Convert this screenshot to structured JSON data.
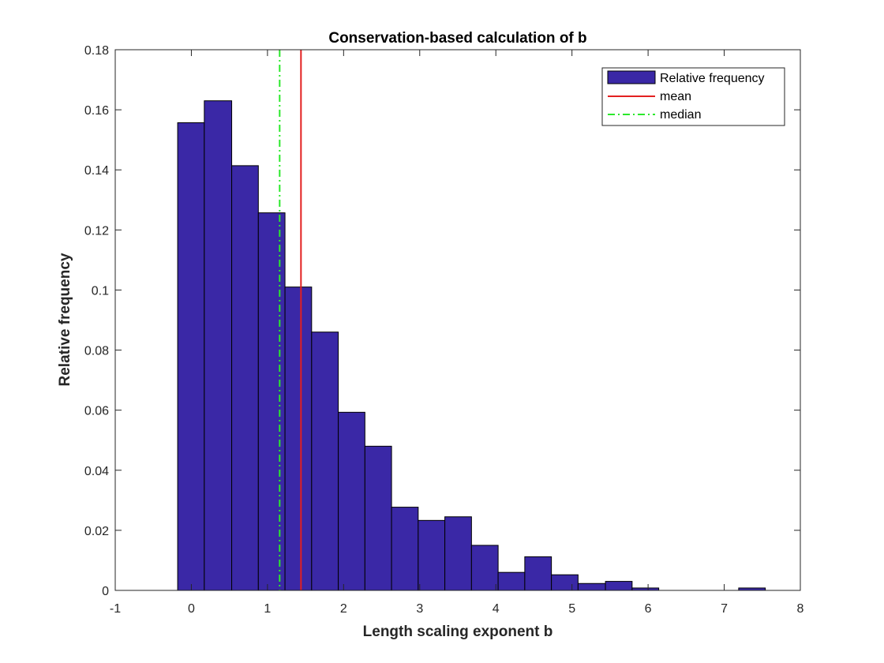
{
  "chart_data": {
    "type": "bar",
    "title": "Conservation-based calculation of b",
    "xlabel": "Length scaling exponent b",
    "ylabel": "Relative frequency",
    "xlim": [
      -1,
      8
    ],
    "ylim": [
      0,
      0.18
    ],
    "xticks": [
      -1,
      0,
      1,
      2,
      3,
      4,
      5,
      6,
      7,
      8
    ],
    "yticks": [
      0,
      0.02,
      0.04,
      0.06,
      0.08,
      0.1,
      0.12,
      0.14,
      0.16,
      0.18
    ],
    "xtick_labels": [
      "-1",
      "0",
      "1",
      "2",
      "3",
      "4",
      "5",
      "6",
      "7",
      "8"
    ],
    "ytick_labels": [
      "0",
      "0.02",
      "0.04",
      "0.06",
      "0.08",
      "0.1",
      "0.12",
      "0.14",
      "0.16",
      "0.18"
    ],
    "bin_edges": [
      -0.18,
      0.17,
      0.53,
      0.88,
      1.23,
      1.58,
      1.93,
      2.28,
      2.63,
      2.98,
      3.33,
      3.68,
      4.03,
      4.38,
      4.73,
      5.08,
      5.44,
      5.79,
      6.14,
      6.49,
      6.84,
      7.19,
      7.54
    ],
    "values": [
      0.1557,
      0.163,
      0.1414,
      0.1257,
      0.101,
      0.086,
      0.0593,
      0.048,
      0.0277,
      0.0233,
      0.0245,
      0.015,
      0.006,
      0.0112,
      0.0052,
      0.0023,
      0.003,
      0.0008,
      0.0,
      0.0,
      0.0,
      0.0008
    ],
    "series": [
      {
        "name": "Relative frequency",
        "kind": "histogram",
        "color": "#3A28A6"
      },
      {
        "name": "mean",
        "kind": "vline",
        "x": 1.44,
        "color": "#E32020"
      },
      {
        "name": "median",
        "kind": "vline",
        "x": 1.16,
        "color": "#2BE82B"
      }
    ],
    "legend_position": "top-right",
    "grid": false
  }
}
